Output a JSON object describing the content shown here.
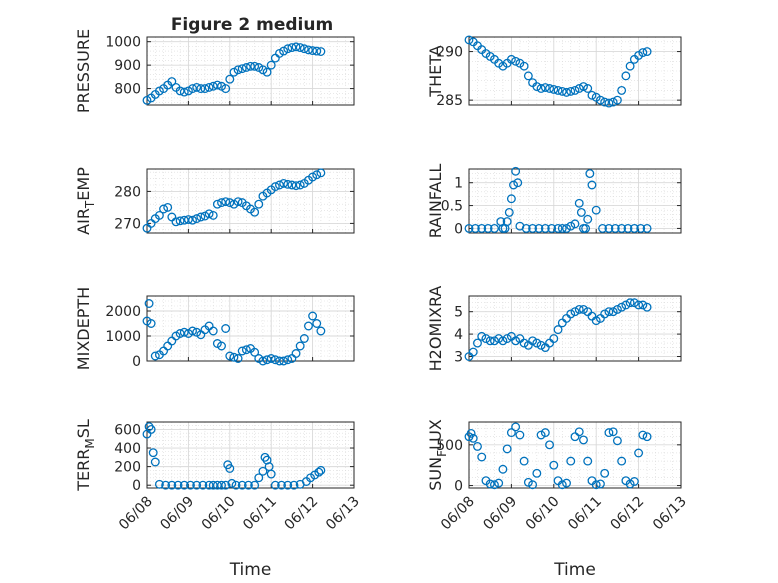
{
  "figure_title": "Figure 2 medium",
  "colors": {
    "marker": "#0072BD",
    "axis": "#262626",
    "grid": "#d9d9d9"
  },
  "chart_data": [
    {
      "type": "scatter",
      "ylabel": "PRESSURE",
      "ylim": [
        730,
        1020
      ],
      "yticks": [
        800,
        900,
        1000
      ],
      "xlim": [
        0,
        5
      ],
      "grid": true,
      "marker": "open-circle",
      "x": [
        0.0,
        0.1,
        0.2,
        0.3,
        0.4,
        0.5,
        0.6,
        0.7,
        0.8,
        0.9,
        1.0,
        1.1,
        1.2,
        1.3,
        1.4,
        1.5,
        1.6,
        1.7,
        1.8,
        1.9,
        2.0,
        2.1,
        2.2,
        2.3,
        2.4,
        2.5,
        2.6,
        2.7,
        2.8,
        2.9,
        3.0,
        3.1,
        3.2,
        3.3,
        3.4,
        3.5,
        3.6,
        3.7,
        3.8,
        3.9,
        4.0,
        4.1,
        4.2
      ],
      "y": [
        750,
        760,
        775,
        790,
        800,
        815,
        830,
        805,
        790,
        785,
        790,
        800,
        805,
        800,
        800,
        805,
        810,
        815,
        810,
        800,
        840,
        870,
        880,
        885,
        890,
        895,
        895,
        890,
        880,
        870,
        900,
        930,
        950,
        960,
        970,
        975,
        978,
        975,
        970,
        965,
        962,
        960,
        958
      ]
    },
    {
      "type": "scatter",
      "ylabel": "THETA",
      "ylim": [
        284.5,
        291.5
      ],
      "yticks": [
        285,
        290
      ],
      "xlim": [
        0,
        5
      ],
      "grid": true,
      "marker": "open-circle",
      "x": [
        0.0,
        0.1,
        0.2,
        0.3,
        0.4,
        0.5,
        0.6,
        0.7,
        0.8,
        0.9,
        1.0,
        1.1,
        1.2,
        1.3,
        1.4,
        1.5,
        1.6,
        1.7,
        1.8,
        1.9,
        2.0,
        2.1,
        2.2,
        2.3,
        2.4,
        2.5,
        2.6,
        2.7,
        2.8,
        2.9,
        3.0,
        3.1,
        3.2,
        3.3,
        3.4,
        3.5,
        3.6,
        3.7,
        3.8,
        3.9,
        4.0,
        4.1,
        4.2
      ],
      "y": [
        291.2,
        291.0,
        290.6,
        290.2,
        289.8,
        289.5,
        289.2,
        288.8,
        288.5,
        288.8,
        289.2,
        289.0,
        288.8,
        288.5,
        287.5,
        286.8,
        286.4,
        286.2,
        286.3,
        286.2,
        286.1,
        286.0,
        285.9,
        285.8,
        285.9,
        286.0,
        286.2,
        286.4,
        286.2,
        285.5,
        285.3,
        285.0,
        284.8,
        284.7,
        284.8,
        285.0,
        286.0,
        287.5,
        288.5,
        289.2,
        289.6,
        289.9,
        290.0
      ]
    },
    {
      "type": "scatter",
      "ylabel": "AIR_TEMP",
      "ylim": [
        267,
        287
      ],
      "yticks": [
        270,
        280
      ],
      "xlim": [
        0,
        5
      ],
      "grid": true,
      "marker": "open-circle",
      "x": [
        0.0,
        0.1,
        0.2,
        0.3,
        0.4,
        0.5,
        0.6,
        0.7,
        0.8,
        0.9,
        1.0,
        1.1,
        1.2,
        1.3,
        1.4,
        1.5,
        1.6,
        1.7,
        1.8,
        1.9,
        2.0,
        2.1,
        2.2,
        2.3,
        2.4,
        2.5,
        2.6,
        2.7,
        2.8,
        2.9,
        3.0,
        3.1,
        3.2,
        3.3,
        3.4,
        3.5,
        3.6,
        3.7,
        3.8,
        3.9,
        4.0,
        4.1,
        4.2
      ],
      "y": [
        268.5,
        270.0,
        271.5,
        272.5,
        274.5,
        275.0,
        272.0,
        270.5,
        270.8,
        271.0,
        271.2,
        271.0,
        271.5,
        272.0,
        272.3,
        273.0,
        272.5,
        276.0,
        276.5,
        276.8,
        276.5,
        276.0,
        276.8,
        276.5,
        275.5,
        274.5,
        273.5,
        276.0,
        278.5,
        279.5,
        280.5,
        281.5,
        282.0,
        282.5,
        282.2,
        282.0,
        281.8,
        282.0,
        282.5,
        283.5,
        284.5,
        285.2,
        285.8
      ]
    },
    {
      "type": "scatter",
      "ylabel": "RAINFALL",
      "ylim": [
        -0.1,
        1.3
      ],
      "yticks": [
        0,
        0.5,
        1
      ],
      "xlim": [
        0,
        5
      ],
      "grid": true,
      "marker": "open-circle",
      "x": [
        0.0,
        0.15,
        0.3,
        0.45,
        0.6,
        0.75,
        0.8,
        0.85,
        0.9,
        0.95,
        1.0,
        1.05,
        1.1,
        1.15,
        1.2,
        1.35,
        1.5,
        1.65,
        1.8,
        1.95,
        2.1,
        2.2,
        2.3,
        2.4,
        2.5,
        2.6,
        2.65,
        2.7,
        2.75,
        2.8,
        2.85,
        2.9,
        3.0,
        3.15,
        3.3,
        3.45,
        3.6,
        3.75,
        3.9,
        4.05,
        4.2
      ],
      "y": [
        0,
        0,
        0,
        0,
        0,
        0.15,
        0,
        0,
        0.15,
        0.35,
        0.65,
        0.95,
        1.25,
        1.0,
        0.05,
        0,
        0,
        0,
        0,
        0,
        0,
        0,
        0,
        0.05,
        0.1,
        0.55,
        0.35,
        0,
        0,
        0.2,
        1.2,
        0.95,
        0.4,
        0,
        0,
        0,
        0,
        0,
        0,
        0,
        0
      ]
    },
    {
      "type": "scatter",
      "ylabel": "MIXDEPTH",
      "ylim": [
        0,
        2600
      ],
      "yticks": [
        0,
        1000,
        2000
      ],
      "xlim": [
        0,
        5
      ],
      "grid": true,
      "marker": "open-circle",
      "x": [
        0.0,
        0.05,
        0.1,
        0.2,
        0.3,
        0.4,
        0.5,
        0.6,
        0.7,
        0.8,
        0.9,
        1.0,
        1.1,
        1.2,
        1.3,
        1.4,
        1.5,
        1.6,
        1.7,
        1.8,
        1.9,
        2.0,
        2.1,
        2.2,
        2.3,
        2.4,
        2.5,
        2.6,
        2.7,
        2.8,
        2.9,
        3.0,
        3.1,
        3.2,
        3.3,
        3.4,
        3.5,
        3.6,
        3.7,
        3.8,
        3.9,
        4.0,
        4.1,
        4.2
      ],
      "y": [
        1600,
        2300,
        1500,
        200,
        250,
        400,
        600,
        800,
        1000,
        1100,
        1150,
        1100,
        1200,
        1150,
        1050,
        1250,
        1400,
        1200,
        700,
        600,
        1300,
        200,
        150,
        100,
        400,
        450,
        500,
        350,
        100,
        0,
        50,
        100,
        50,
        0,
        0,
        50,
        100,
        300,
        600,
        900,
        1400,
        1800,
        1500,
        1200
      ]
    },
    {
      "type": "scatter",
      "ylabel": "H2OMIXRA",
      "ylim": [
        2.8,
        5.7
      ],
      "yticks": [
        3,
        4,
        5
      ],
      "xlim": [
        0,
        5
      ],
      "grid": true,
      "marker": "open-circle",
      "x": [
        0.0,
        0.1,
        0.2,
        0.3,
        0.4,
        0.5,
        0.6,
        0.7,
        0.8,
        0.9,
        1.0,
        1.1,
        1.2,
        1.3,
        1.4,
        1.5,
        1.6,
        1.7,
        1.8,
        1.9,
        2.0,
        2.1,
        2.2,
        2.3,
        2.4,
        2.5,
        2.6,
        2.7,
        2.8,
        2.9,
        3.0,
        3.1,
        3.2,
        3.3,
        3.4,
        3.5,
        3.6,
        3.7,
        3.8,
        3.9,
        4.0,
        4.1,
        4.2
      ],
      "y": [
        3.0,
        3.2,
        3.6,
        3.9,
        3.8,
        3.7,
        3.7,
        3.8,
        3.7,
        3.8,
        3.9,
        3.7,
        3.8,
        3.6,
        3.5,
        3.7,
        3.6,
        3.5,
        3.4,
        3.6,
        3.8,
        4.2,
        4.5,
        4.7,
        4.9,
        5.0,
        5.1,
        5.1,
        5.0,
        4.8,
        4.6,
        4.7,
        4.9,
        5.0,
        5.0,
        5.1,
        5.2,
        5.3,
        5.4,
        5.4,
        5.3,
        5.3,
        5.2
      ]
    },
    {
      "type": "scatter",
      "ylabel": "TERR_MSL",
      "ylim": [
        -30,
        680
      ],
      "yticks": [
        0,
        200,
        400,
        600
      ],
      "xlim": [
        0,
        5
      ],
      "grid": true,
      "marker": "open-circle",
      "x": [
        0.0,
        0.05,
        0.1,
        0.15,
        0.2,
        0.3,
        0.45,
        0.6,
        0.75,
        0.9,
        1.05,
        1.2,
        1.35,
        1.5,
        1.6,
        1.7,
        1.8,
        1.9,
        1.95,
        2.0,
        2.05,
        2.15,
        2.3,
        2.45,
        2.6,
        2.7,
        2.8,
        2.85,
        2.9,
        2.95,
        3.0,
        3.1,
        3.25,
        3.4,
        3.55,
        3.7,
        3.85,
        3.95,
        4.05,
        4.15,
        4.2
      ],
      "y": [
        550,
        630,
        600,
        350,
        250,
        10,
        0,
        0,
        0,
        0,
        0,
        0,
        0,
        0,
        0,
        0,
        0,
        0,
        220,
        180,
        20,
        0,
        0,
        0,
        0,
        80,
        150,
        300,
        270,
        200,
        120,
        0,
        0,
        0,
        0,
        10,
        40,
        80,
        110,
        140,
        160
      ]
    },
    {
      "type": "scatter",
      "ylabel": "SUN_FLUX",
      "ylim": [
        -30,
        780
      ],
      "yticks": [
        0,
        500
      ],
      "xlim": [
        0,
        5
      ],
      "grid": true,
      "marker": "open-circle",
      "x": [
        0.0,
        0.05,
        0.1,
        0.2,
        0.3,
        0.4,
        0.5,
        0.6,
        0.7,
        0.8,
        0.9,
        1.0,
        1.1,
        1.2,
        1.3,
        1.4,
        1.5,
        1.6,
        1.7,
        1.8,
        1.9,
        2.0,
        2.1,
        2.2,
        2.3,
        2.4,
        2.5,
        2.6,
        2.7,
        2.8,
        2.9,
        3.0,
        3.1,
        3.2,
        3.3,
        3.4,
        3.5,
        3.6,
        3.7,
        3.8,
        3.9,
        4.0,
        4.1,
        4.2
      ],
      "y": [
        600,
        640,
        580,
        480,
        350,
        60,
        20,
        10,
        30,
        200,
        450,
        650,
        720,
        620,
        300,
        40,
        10,
        150,
        620,
        650,
        500,
        250,
        60,
        10,
        30,
        300,
        600,
        660,
        560,
        300,
        60,
        10,
        20,
        150,
        650,
        660,
        550,
        300,
        60,
        20,
        50,
        400,
        620,
        600
      ]
    }
  ],
  "x_axis": {
    "tick_labels": [
      "06/08",
      "06/09",
      "06/10",
      "06/11",
      "06/12",
      "06/13"
    ],
    "label": "Time"
  }
}
